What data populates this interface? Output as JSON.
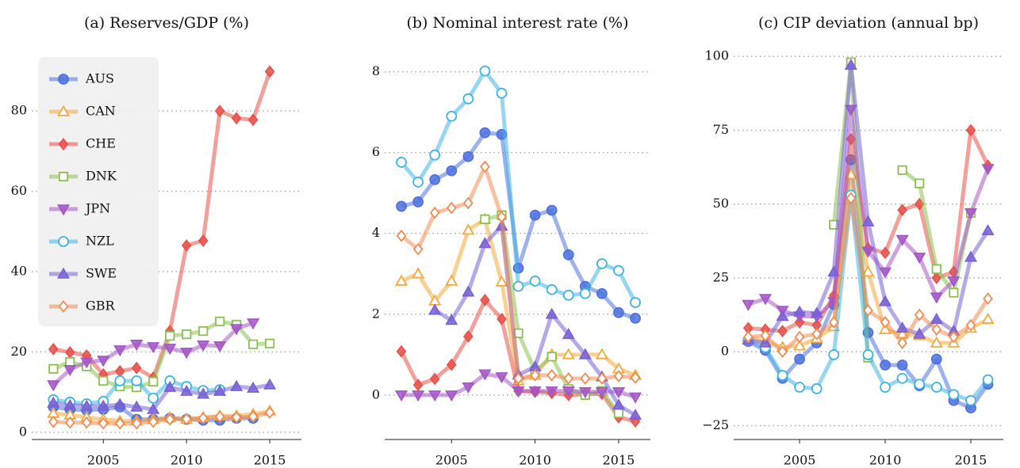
{
  "chart_data": [
    {
      "type": "line",
      "title": "(a) Reserves/GDP (%)",
      "legend": "upper left",
      "grid": true,
      "x": [
        2002,
        2003,
        2004,
        2005,
        2006,
        2007,
        2008,
        2009,
        2010,
        2011,
        2012,
        2013,
        2014,
        2015
      ],
      "xlim": [
        2000.7,
        2016.9
      ],
      "xticks": [
        2005,
        2010,
        2015
      ],
      "ylim": [
        -1.8,
        95.8
      ],
      "yticks": [
        0,
        20,
        40,
        60,
        80
      ],
      "series": [
        {
          "name": "AUS",
          "color": "#4f72de",
          "marker": "o",
          "filled": true,
          "values": [
            6.3,
            5.7,
            5.5,
            5.7,
            6.3,
            3.2,
            3.2,
            3.5,
            3.2,
            3.0,
            3.0,
            3.5,
            3.5,
            null
          ]
        },
        {
          "name": "CAN",
          "color": "#f5a83a",
          "marker": "^",
          "filled": false,
          "values": [
            4.7,
            4.3,
            3.7,
            3.2,
            2.8,
            2.8,
            3.2,
            3.7,
            3.3,
            3.7,
            4.1,
            4.1,
            4.5,
            5.3
          ]
        },
        {
          "name": "CHE",
          "color": "#e8524a",
          "marker": "D",
          "filled": true,
          "values": [
            20.7,
            19.9,
            19.1,
            14.4,
            15.2,
            16.0,
            13.6,
            25.2,
            46.5,
            47.7,
            80.0,
            78.2,
            77.8,
            89.8
          ]
        },
        {
          "name": "DNK",
          "color": "#8cc152",
          "marker": "s",
          "filled": false,
          "values": [
            15.8,
            17.5,
            16.4,
            12.8,
            11.4,
            11.2,
            12.6,
            24.0,
            24.4,
            25.2,
            27.6,
            26.8,
            21.9,
            22.1
          ]
        },
        {
          "name": "JPN",
          "color": "#a557c6",
          "marker": "v",
          "filled": true,
          "values": [
            11.8,
            15.6,
            17.5,
            17.9,
            20.5,
            21.9,
            21.3,
            20.9,
            19.9,
            21.7,
            21.5,
            25.8,
            27.2,
            null
          ]
        },
        {
          "name": "NZL",
          "color": "#3fb4e3",
          "marker": "o",
          "filled": false,
          "values": [
            8.1,
            7.5,
            7.1,
            7.7,
            12.8,
            12.8,
            8.5,
            12.8,
            11.4,
            10.4,
            10.6,
            null,
            null,
            null
          ]
        },
        {
          "name": "SWE",
          "color": "#7a62d5",
          "marker": "^",
          "filled": true,
          "values": [
            7.3,
            6.7,
            6.5,
            6.5,
            6.9,
            6.3,
            5.7,
            11.2,
            10.2,
            9.5,
            10.2,
            11.4,
            11.0,
            11.8
          ]
        },
        {
          "name": "GBR",
          "color": "#f08c52",
          "marker": "D",
          "filled": false,
          "values": [
            2.6,
            2.4,
            2.4,
            2.2,
            2.2,
            2.2,
            2.6,
            3.2,
            3.3,
            3.5,
            3.9,
            3.7,
            3.9,
            4.9
          ]
        }
      ]
    },
    {
      "type": "line",
      "title": "(b) Nominal interest rate (%)",
      "grid": true,
      "x": [
        2002,
        2003,
        2004,
        2005,
        2006,
        2007,
        2008,
        2009,
        2010,
        2011,
        2012,
        2013,
        2014,
        2015,
        2016
      ],
      "xlim": [
        2001,
        2016.9
      ],
      "xticks": [
        2005,
        2010,
        2015
      ],
      "ylim": [
        -1.1,
        8.6
      ],
      "yticks": [
        0,
        2,
        4,
        6,
        8
      ],
      "series": [
        {
          "color": "#4f72de",
          "marker": "o",
          "filled": true,
          "values": [
            4.67,
            4.78,
            5.33,
            5.55,
            5.9,
            6.49,
            6.45,
            3.14,
            4.45,
            4.57,
            3.47,
            2.69,
            2.51,
            2.04,
            1.9
          ]
        },
        {
          "color": "#f5a83a",
          "marker": "^",
          "filled": false,
          "values": [
            2.82,
            3.0,
            2.33,
            2.82,
            4.08,
            4.35,
            2.8,
            0.35,
            0.49,
            1.0,
            1.0,
            1.0,
            1.0,
            0.65,
            0.49
          ]
        },
        {
          "color": "#e8524a",
          "marker": "D",
          "filled": true,
          "values": [
            1.08,
            0.25,
            0.4,
            0.75,
            1.45,
            2.35,
            1.88,
            0.1,
            0.08,
            0.05,
            0.0,
            0.02,
            0.03,
            -0.55,
            -0.65
          ]
        },
        {
          "color": "#8cc152",
          "marker": "s",
          "filled": false,
          "values": [
            null,
            null,
            null,
            null,
            null,
            4.35,
            4.45,
            1.53,
            0.6,
            0.95,
            0.15,
            0.0,
            0.1,
            -0.45,
            null
          ]
        },
        {
          "color": "#a557c6",
          "marker": "v",
          "filled": true,
          "values": [
            0.0,
            0.0,
            0.0,
            0.0,
            0.2,
            0.52,
            0.45,
            0.1,
            0.1,
            0.1,
            0.1,
            0.08,
            0.08,
            0.08,
            -0.05
          ]
        },
        {
          "color": "#3fb4e3",
          "marker": "o",
          "filled": false,
          "values": [
            5.76,
            5.27,
            5.94,
            6.9,
            7.33,
            8.02,
            7.47,
            2.69,
            2.82,
            2.61,
            2.47,
            2.51,
            3.25,
            3.08,
            2.29
          ]
        },
        {
          "color": "#7a62d5",
          "marker": "^",
          "filled": true,
          "values": [
            null,
            null,
            2.1,
            1.85,
            2.55,
            3.75,
            4.18,
            0.5,
            0.7,
            2.0,
            1.5,
            1.0,
            0.45,
            -0.25,
            -0.5
          ]
        },
        {
          "color": "#f08c52",
          "marker": "D",
          "filled": false,
          "values": [
            3.94,
            3.61,
            4.51,
            4.63,
            4.75,
            5.65,
            4.41,
            0.41,
            0.49,
            0.49,
            0.41,
            0.41,
            0.41,
            0.47,
            0.43
          ]
        }
      ]
    },
    {
      "type": "line",
      "title": "(c) CIP deviation (annual bp)",
      "grid": true,
      "x": [
        2002,
        2003,
        2004,
        2005,
        2006,
        2007,
        2008,
        2009,
        2010,
        2011,
        2012,
        2013,
        2014,
        2015,
        2016
      ],
      "xlim": [
        2001.15,
        2016.9
      ],
      "xticks": [
        2005,
        2010,
        2015
      ],
      "ylim": [
        -29.7,
        103
      ],
      "yticks": [
        {
          "value": -25,
          "label": "−25"
        },
        0,
        25,
        50,
        75,
        100
      ],
      "series": [
        {
          "color": "#4f72de",
          "marker": "o",
          "filled": true,
          "values": [
            3.5,
            0.5,
            -9,
            -2.5,
            3,
            16,
            65,
            6.5,
            -4.5,
            -4.5,
            -11.5,
            -2.5,
            -16.5,
            -19,
            -11
          ]
        },
        {
          "color": "#f5a83a",
          "marker": "^",
          "filled": false,
          "values": [
            5,
            3.5,
            1.5,
            2,
            4.5,
            8.5,
            60,
            27,
            7.5,
            6,
            5.5,
            3,
            3,
            8,
            11
          ]
        },
        {
          "color": "#e8524a",
          "marker": "D",
          "filled": true,
          "values": [
            8,
            7.5,
            7,
            10,
            9,
            19,
            72,
            35,
            33.5,
            48,
            50,
            25,
            27,
            75,
            63
          ]
        },
        {
          "color": "#8cc152",
          "marker": "s",
          "filled": false,
          "values": [
            null,
            null,
            null,
            null,
            null,
            43,
            98,
            -2,
            null,
            61.5,
            57,
            28,
            20,
            47,
            null
          ]
        },
        {
          "color": "#a557c6",
          "marker": "v",
          "filled": true,
          "values": [
            16,
            18,
            14,
            12,
            12,
            17,
            82,
            34,
            27,
            38,
            32,
            18.5,
            24,
            47,
            62
          ]
        },
        {
          "color": "#3fb4e3",
          "marker": "o",
          "filled": false,
          "values": [
            4,
            1.5,
            -8,
            -12,
            -12.5,
            -1,
            53,
            -1,
            -12,
            -9,
            -11,
            -12,
            -14.5,
            -16.5,
            -9.5
          ]
        },
        {
          "color": "#7a62d5",
          "marker": "^",
          "filled": true,
          "values": [
            4,
            3,
            12,
            13.5,
            13,
            27,
            97,
            44,
            17,
            8,
            6,
            11,
            7,
            32,
            41
          ]
        },
        {
          "color": "#f08c52",
          "marker": "D",
          "filled": false,
          "values": [
            5,
            5.5,
            0,
            5,
            6,
            10,
            52,
            14,
            10,
            3,
            12.5,
            7.5,
            5,
            9,
            18
          ]
        }
      ]
    }
  ]
}
